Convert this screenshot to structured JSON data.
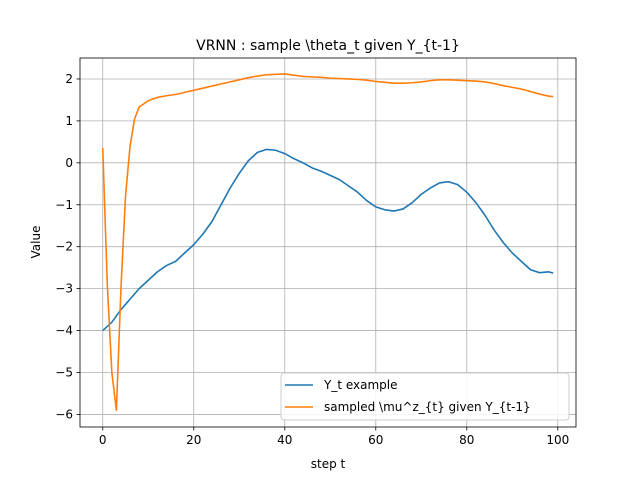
{
  "chart_data": {
    "type": "line",
    "title": "VRNN : sample \\theta_t given Y_{t-1}",
    "xlabel": "step t",
    "ylabel": "Value",
    "xlim": [
      -5,
      104
    ],
    "ylim": [
      -6.3,
      2.5
    ],
    "xticks": [
      0,
      20,
      40,
      60,
      80,
      100
    ],
    "yticks": [
      -6,
      -5,
      -4,
      -3,
      -2,
      -1,
      0,
      1,
      2
    ],
    "grid": true,
    "legend_position": "lower-right",
    "series": [
      {
        "name": "Y_t example",
        "color": "#1f77b4",
        "x": [
          0,
          2,
          4,
          6,
          8,
          10,
          12,
          14,
          16,
          18,
          20,
          22,
          24,
          26,
          28,
          30,
          32,
          34,
          36,
          38,
          40,
          42,
          44,
          46,
          48,
          50,
          52,
          54,
          56,
          58,
          60,
          62,
          64,
          66,
          68,
          70,
          72,
          74,
          76,
          78,
          80,
          82,
          84,
          86,
          88,
          90,
          92,
          94,
          96,
          98,
          99
        ],
        "y": [
          -4.0,
          -3.8,
          -3.5,
          -3.25,
          -3.0,
          -2.8,
          -2.6,
          -2.45,
          -2.35,
          -2.15,
          -1.95,
          -1.7,
          -1.4,
          -1.0,
          -0.6,
          -0.25,
          0.05,
          0.25,
          0.32,
          0.3,
          0.22,
          0.1,
          0.0,
          -0.12,
          -0.2,
          -0.3,
          -0.4,
          -0.55,
          -0.7,
          -0.9,
          -1.05,
          -1.12,
          -1.15,
          -1.1,
          -0.95,
          -0.75,
          -0.6,
          -0.48,
          -0.45,
          -0.52,
          -0.7,
          -0.95,
          -1.25,
          -1.6,
          -1.9,
          -2.15,
          -2.35,
          -2.55,
          -2.62,
          -2.6,
          -2.63
        ]
      },
      {
        "name": "sampled \\mu^z_{t} given Y_{t-1}",
        "color": "#ff7f0e",
        "x": [
          0,
          1,
          2,
          3,
          4,
          5,
          6,
          7,
          8,
          10,
          12,
          14,
          16,
          18,
          20,
          22,
          24,
          26,
          28,
          30,
          32,
          34,
          36,
          38,
          40,
          42,
          44,
          46,
          48,
          50,
          52,
          54,
          56,
          58,
          60,
          62,
          64,
          66,
          68,
          70,
          72,
          74,
          76,
          78,
          80,
          82,
          84,
          86,
          88,
          90,
          92,
          94,
          96,
          98,
          99
        ],
        "y": [
          0.35,
          -2.9,
          -5.0,
          -5.9,
          -3.0,
          -0.8,
          0.4,
          1.05,
          1.33,
          1.48,
          1.56,
          1.6,
          1.63,
          1.68,
          1.73,
          1.78,
          1.83,
          1.88,
          1.93,
          1.98,
          2.03,
          2.07,
          2.1,
          2.11,
          2.12,
          2.09,
          2.06,
          2.05,
          2.04,
          2.02,
          2.01,
          2.0,
          1.99,
          1.97,
          1.94,
          1.92,
          1.9,
          1.9,
          1.91,
          1.93,
          1.96,
          1.98,
          1.98,
          1.97,
          1.96,
          1.95,
          1.93,
          1.89,
          1.84,
          1.8,
          1.76,
          1.7,
          1.64,
          1.59,
          1.58
        ]
      }
    ]
  }
}
